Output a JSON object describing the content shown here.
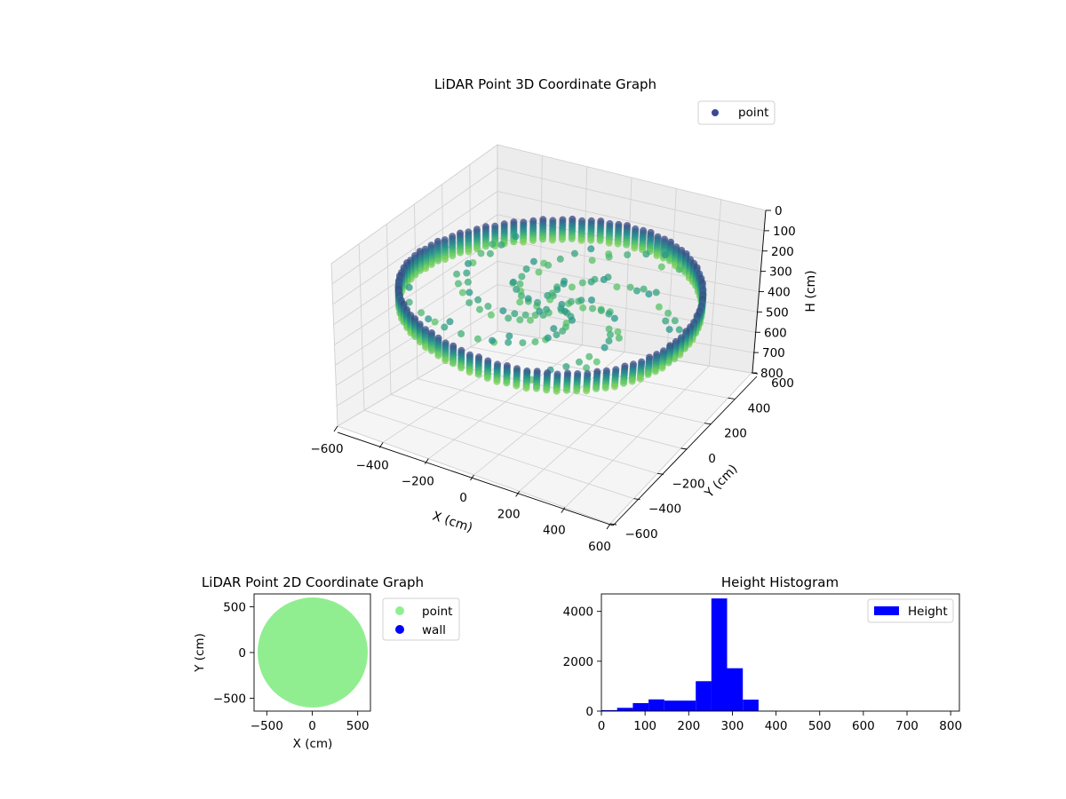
{
  "chart_data": [
    {
      "type": "scatter3d",
      "title": "LiDAR Point 3D Coordinate Graph",
      "xlabel": "X (cm)",
      "ylabel": "Y (cm)",
      "zlabel": "H (cm)",
      "xlim": [
        -600,
        600
      ],
      "ylim": [
        -600,
        600
      ],
      "zlim": [
        0,
        800
      ],
      "z_inverted": true,
      "x_ticks": [
        "−600",
        "−400",
        "−200",
        "0",
        "200",
        "400",
        "600"
      ],
      "y_ticks": [
        "−600",
        "−400",
        "−200",
        "0",
        "200",
        "400",
        "600"
      ],
      "z_ticks": [
        "0",
        "100",
        "200",
        "300",
        "400",
        "500",
        "600",
        "700",
        "800"
      ],
      "legend": {
        "placement": "upper-right",
        "entries": [
          {
            "label": "point",
            "color": "#3b4994"
          }
        ]
      },
      "colormap": "viridis",
      "description_shape": "ring of points, radius about 580 cm, height range about 200–300 cm",
      "grid": true
    },
    {
      "type": "scatter",
      "title": "LiDAR Point 2D Coordinate Graph",
      "xlabel": "X (cm)",
      "ylabel": "Y (cm)",
      "xlim": [
        -640,
        640
      ],
      "ylim": [
        -640,
        640
      ],
      "x_ticks": [
        "−500",
        "0",
        "500"
      ],
      "y_ticks": [
        "500",
        "0",
        "−500"
      ],
      "series": [
        {
          "name": "point",
          "color": "#90ee90",
          "shape": "filled disk",
          "radius": 580
        },
        {
          "name": "wall",
          "color": "#0000ff",
          "points": []
        }
      ],
      "legend": {
        "placement": "outside-right"
      }
    },
    {
      "type": "histogram",
      "title": "Height Histogram",
      "xlabel": "",
      "ylabel": "",
      "xlim": [
        0,
        820
      ],
      "ylim": [
        0,
        4700
      ],
      "x_ticks": [
        "0",
        "100",
        "200",
        "300",
        "400",
        "500",
        "600",
        "700",
        "800"
      ],
      "y_ticks": [
        "0",
        "2000",
        "4000"
      ],
      "color": "#0000ff",
      "bin_width": 36,
      "bins": [
        {
          "x0": 0,
          "x1": 36,
          "count": 40
        },
        {
          "x0": 36,
          "x1": 72,
          "count": 130
        },
        {
          "x0": 72,
          "x1": 108,
          "count": 320
        },
        {
          "x0": 108,
          "x1": 144,
          "count": 470
        },
        {
          "x0": 144,
          "x1": 180,
          "count": 420
        },
        {
          "x0": 180,
          "x1": 216,
          "count": 420
        },
        {
          "x0": 216,
          "x1": 252,
          "count": 1200
        },
        {
          "x0": 252,
          "x1": 288,
          "count": 4520
        },
        {
          "x0": 288,
          "x1": 324,
          "count": 1720
        },
        {
          "x0": 324,
          "x1": 360,
          "count": 460
        },
        {
          "x0": 360,
          "x1": 396,
          "count": 10
        },
        {
          "x0": 396,
          "x1": 432,
          "count": 5
        }
      ],
      "legend": {
        "placement": "upper-right",
        "entries": [
          {
            "label": "Height",
            "color": "#0000ff"
          }
        ]
      }
    }
  ]
}
